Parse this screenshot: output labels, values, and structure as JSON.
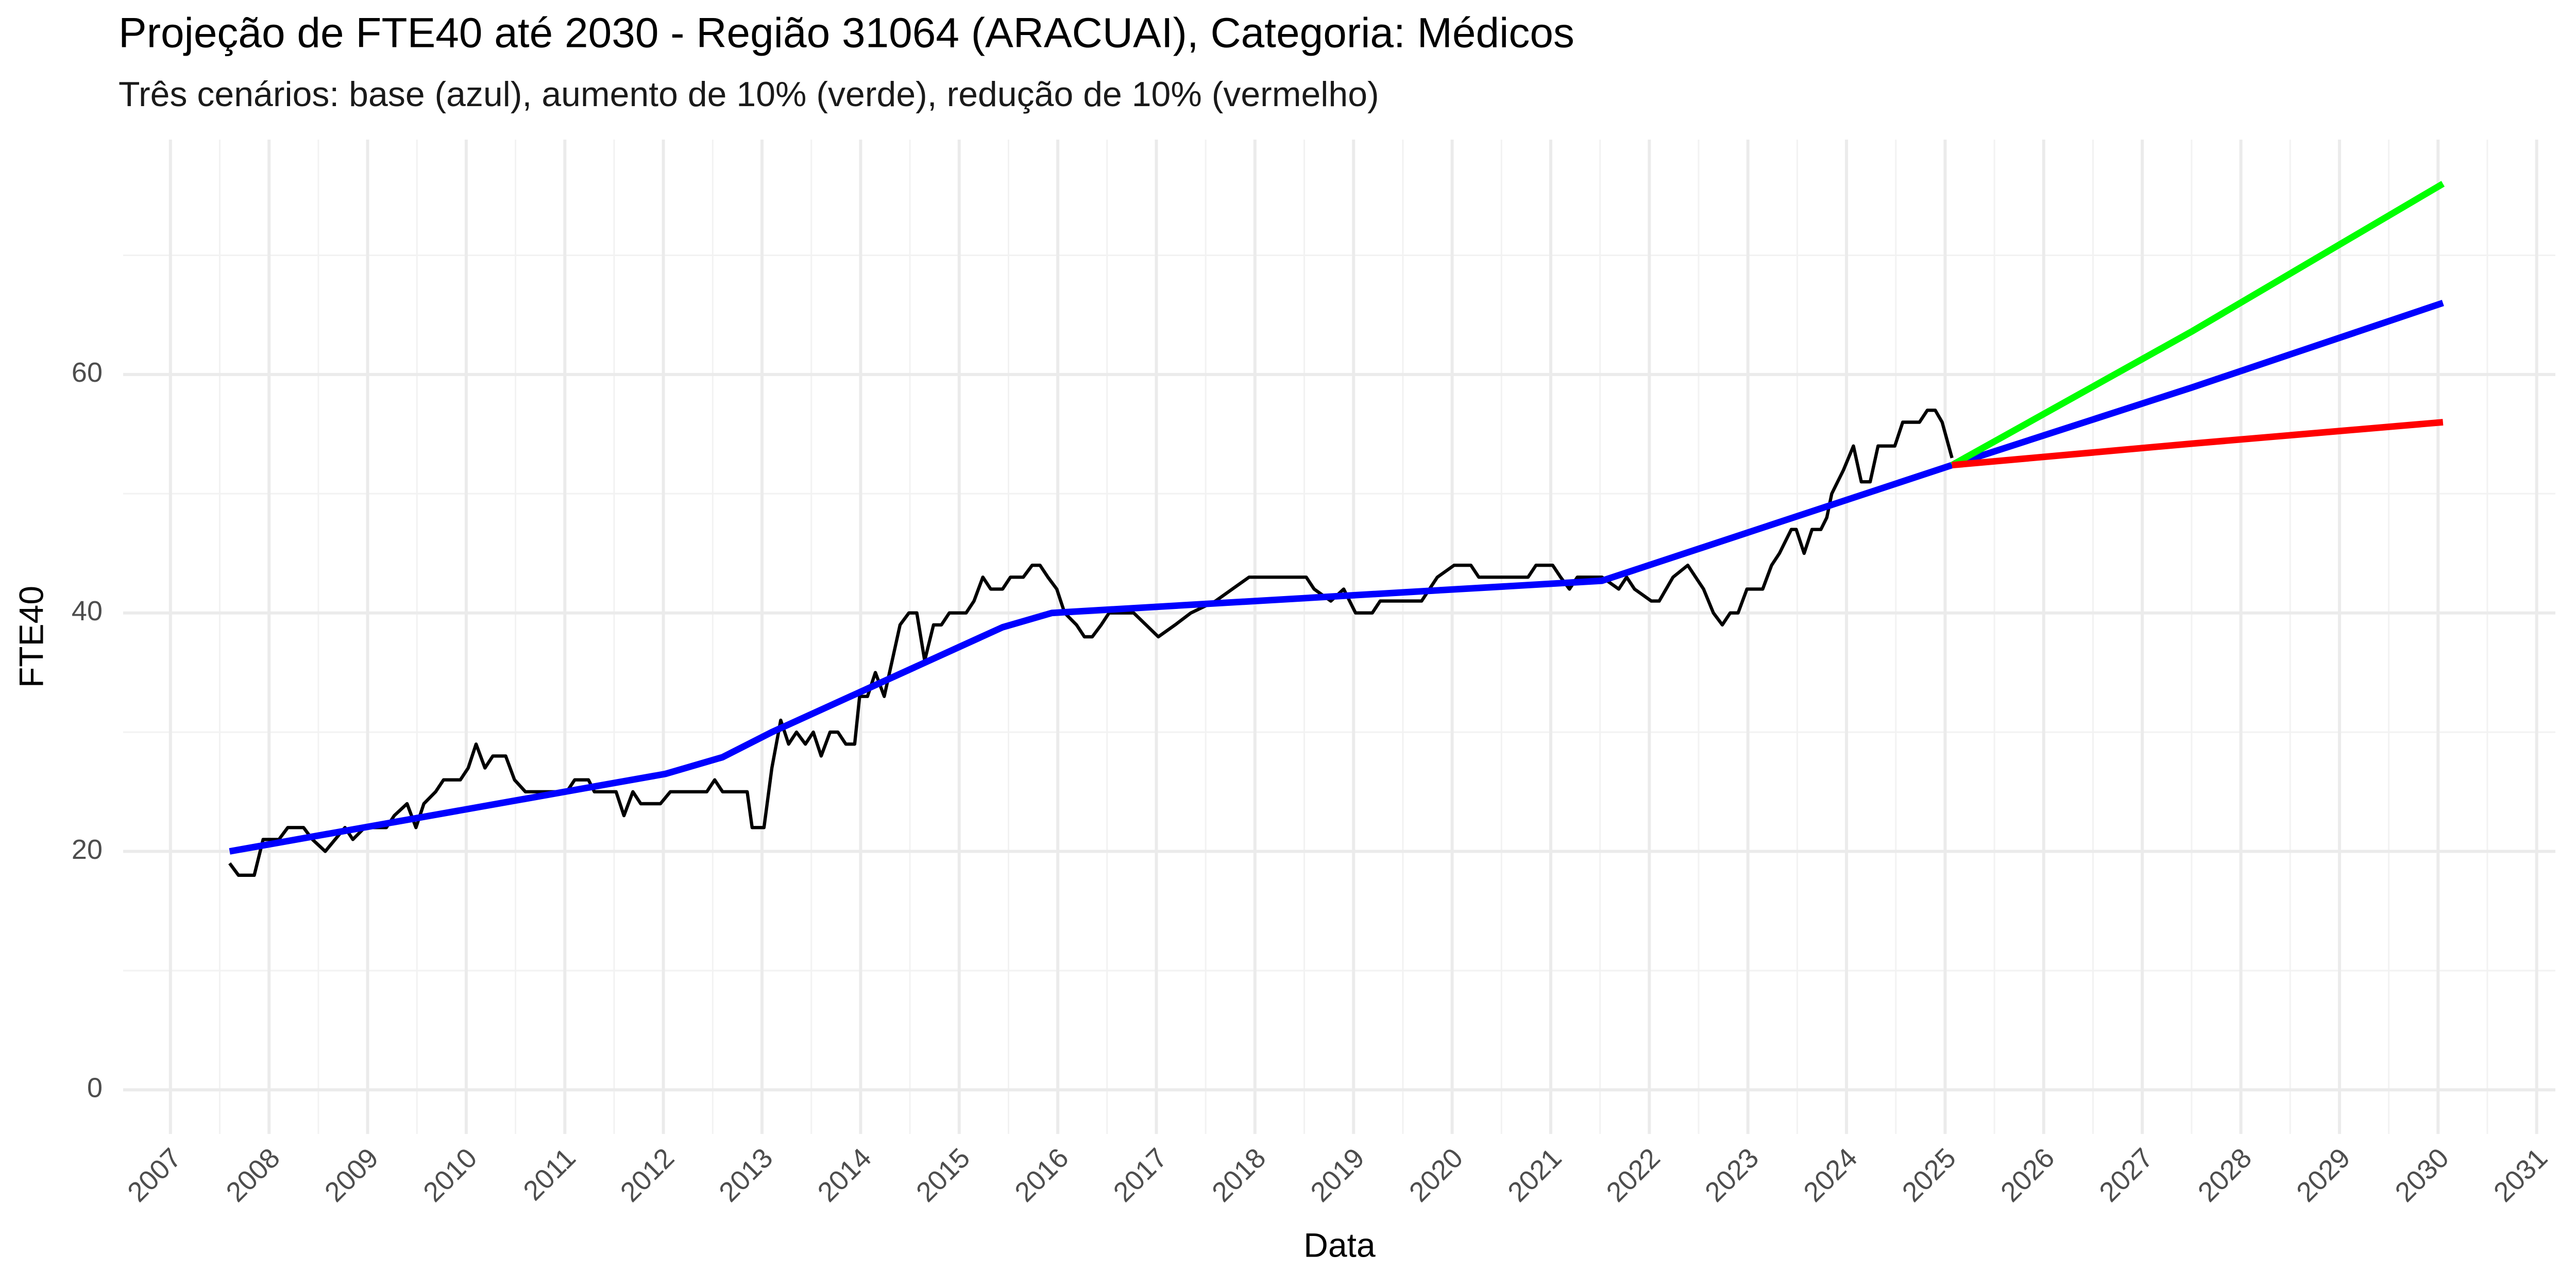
{
  "chart_data": {
    "type": "line",
    "title": "Projeção de FTE40 até 2030 - Região 31064 (ARACUAI), Categoria: Médicos",
    "subtitle": "Três cenários: base (azul), aumento de 10% (verde), redução de 10% (vermelho)",
    "x_label": "Data",
    "y_label": "FTE40",
    "xlim": [
      2006.52,
      2031.19
    ],
    "xticks": [
      2007,
      2008,
      2009,
      2010,
      2011,
      2012,
      2013,
      2014,
      2015,
      2016,
      2017,
      2018,
      2019,
      2020,
      2021,
      2022,
      2023,
      2024,
      2025,
      2026,
      2027,
      2028,
      2029,
      2030,
      2031
    ],
    "ylim": [
      -3.7,
      79.7
    ],
    "yticks": [
      0,
      20,
      40,
      60
    ],
    "grid": true,
    "series": [
      {
        "color": "#000000",
        "width": 2,
        "x": [
          2007.6,
          2007.69,
          2007.85,
          2007.94,
          2008.1,
          2008.19,
          2008.35,
          2008.44,
          2008.57,
          2008.77,
          2008.85,
          2008.97,
          2009.19,
          2009.27,
          2009.4,
          2009.49,
          2009.57,
          2009.69,
          2009.77,
          2009.94,
          2010.02,
          2010.1,
          2010.19,
          2010.27,
          2010.4,
          2010.49,
          2010.6,
          2011.02,
          2011.1,
          2011.24,
          2011.3,
          2011.52,
          2011.6,
          2011.69,
          2011.77,
          2011.97,
          2012.07,
          2012.44,
          2012.52,
          2012.6,
          2012.85,
          2012.9,
          2013.02,
          2013.1,
          2013.19,
          2013.27,
          2013.35,
          2013.44,
          2013.52,
          2013.6,
          2013.69,
          2013.77,
          2013.85,
          2013.94,
          2013.99,
          2014.07,
          2014.15,
          2014.24,
          2014.32,
          2014.4,
          2014.49,
          2014.57,
          2014.65,
          2014.74,
          2014.82,
          2014.9,
          2015.07,
          2015.15,
          2015.24,
          2015.32,
          2015.44,
          2015.52,
          2015.65,
          2015.74,
          2015.82,
          2015.9,
          2015.99,
          2016.07,
          2016.19,
          2016.27,
          2016.35,
          2016.44,
          2016.52,
          2016.77,
          2017.02,
          2017.19,
          2017.35,
          2017.6,
          2017.77,
          2017.94,
          2018.52,
          2018.6,
          2018.77,
          2018.9,
          2019.02,
          2019.19,
          2019.27,
          2019.69,
          2019.77,
          2019.85,
          2020.02,
          2020.19,
          2020.27,
          2020.77,
          2020.85,
          2021.02,
          2021.1,
          2021.19,
          2021.27,
          2021.52,
          2021.69,
          2021.77,
          2021.85,
          2022.02,
          2022.1,
          2022.24,
          2022.39,
          2022.55,
          2022.65,
          2022.74,
          2022.82,
          2022.9,
          2022.99,
          2023.15,
          2023.24,
          2023.32,
          2023.44,
          2023.49,
          2023.57,
          2023.65,
          2023.74,
          2023.8,
          2023.85,
          2023.97,
          2024.07,
          2024.15,
          2024.24,
          2024.32,
          2024.49,
          2024.57,
          2024.74,
          2024.82,
          2024.9,
          2024.97,
          2025.07
        ],
        "values": [
          19,
          18,
          18,
          21,
          21,
          22,
          22,
          21,
          20,
          22,
          21,
          22,
          22,
          23,
          24,
          22,
          24,
          25,
          26,
          26,
          27,
          29,
          27,
          28,
          28,
          26,
          25,
          25,
          26,
          26,
          25,
          25,
          23,
          25,
          24,
          24,
          25,
          25,
          26,
          25,
          25,
          22,
          22,
          27,
          31,
          29,
          30,
          29,
          30,
          28,
          30,
          30,
          29,
          29,
          33,
          33,
          35,
          33,
          36,
          39,
          40,
          40,
          36,
          39,
          39,
          40,
          40,
          41,
          43,
          42,
          42,
          43,
          43,
          44,
          44,
          43,
          42,
          40,
          39,
          38,
          38,
          39,
          40,
          40,
          38,
          39,
          40,
          41,
          42,
          43,
          43,
          42,
          41,
          42,
          40,
          40,
          41,
          41,
          42,
          43,
          44,
          44,
          43,
          43,
          44,
          44,
          43,
          42,
          43,
          43,
          42,
          43,
          42,
          41,
          41,
          43,
          44,
          42,
          40,
          39,
          40,
          40,
          42,
          42,
          44,
          45,
          47,
          47,
          45,
          47,
          47,
          48,
          50,
          52,
          54,
          51,
          51,
          54,
          54,
          56,
          56,
          57,
          57,
          56,
          53
        ]
      },
      {
        "color": "#0000ff",
        "width": 4,
        "x": [
          2007.6,
          2012.02,
          2012.6,
          2013.1,
          2015.44,
          2015.94,
          2021.52,
          2025.07,
          2027.5,
          2030.05
        ],
        "values": [
          20,
          26.5,
          27.9,
          30,
          38.8,
          40,
          42.7,
          52.4,
          58.9,
          66
        ]
      },
      {
        "color": "#00ff00",
        "width": 4,
        "x": [
          2025.07,
          2027.5,
          2030.05
        ],
        "values": [
          52.4,
          63.6,
          76
        ]
      },
      {
        "color": "#ff0000",
        "width": 4,
        "x": [
          2025.07,
          2027.5,
          2030.05
        ],
        "values": [
          52.4,
          54.2,
          56
        ]
      }
    ]
  }
}
